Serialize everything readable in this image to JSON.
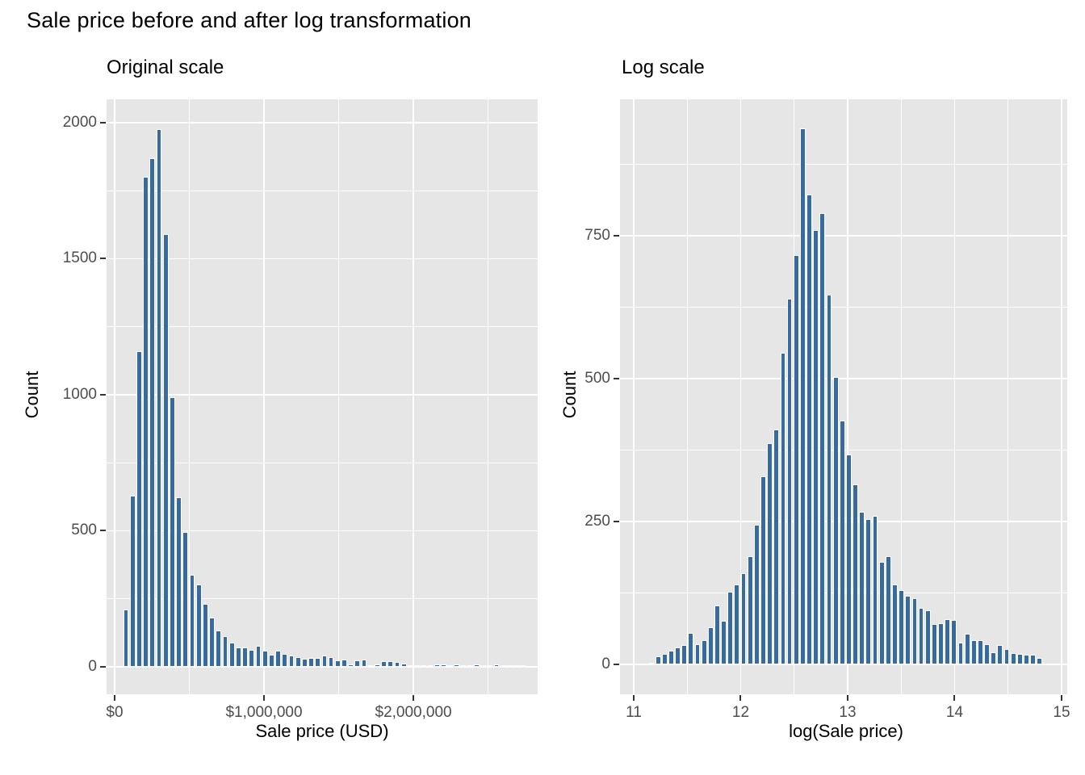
{
  "page": {
    "title": "Sale price before and after log transformation"
  },
  "chart_data": [
    {
      "type": "bar",
      "subtype": "histogram",
      "panel_title": "Original scale",
      "xlabel": "Sale price (USD)",
      "ylabel": "Count",
      "legend": "none",
      "grid": "on",
      "panel_background": "#e6e6e6",
      "bar_color": "#376a9e",
      "x_tick_labels": [
        "$0",
        "$1,000,000",
        "$2,000,000"
      ],
      "x_tick_values": [
        0,
        1000000,
        2000000
      ],
      "x_minor": [
        500000,
        1500000,
        2500000
      ],
      "y_ticks": [
        0,
        500,
        1000,
        1500,
        2000
      ],
      "y_minor": [
        250,
        750,
        1250,
        1750
      ],
      "xlim": [
        -54000,
        2832000
      ],
      "ylim": [
        -101,
        2086
      ],
      "bin_start": 75700,
      "bin_step": 44300,
      "values": [
        210,
        630,
        1160,
        1800,
        1870,
        1975,
        1590,
        990,
        623,
        496,
        339,
        302,
        231,
        181,
        134,
        112,
        89,
        71,
        70,
        63,
        77,
        58,
        45,
        60,
        48,
        40,
        35,
        30,
        33,
        33,
        40,
        35,
        25,
        28,
        10,
        25,
        28,
        3,
        8,
        20,
        20,
        17,
        13,
        6,
        2,
        5,
        5,
        10,
        8,
        3,
        9,
        7,
        4,
        9,
        2,
        4,
        9,
        2,
        1,
        7,
        2
      ]
    },
    {
      "type": "bar",
      "subtype": "histogram",
      "panel_title": "Log scale",
      "xlabel": "log(Sale price)",
      "ylabel": "Count",
      "legend": "none",
      "grid": "on",
      "panel_background": "#e6e6e6",
      "bar_color": "#376a9e",
      "x_tick_labels": [
        "11",
        "12",
        "13",
        "14",
        "15"
      ],
      "x_tick_values": [
        11,
        12,
        13,
        14,
        15
      ],
      "x_minor": [
        11.5,
        12.5,
        13.5,
        14.5
      ],
      "y_ticks": [
        0,
        250,
        500,
        750
      ],
      "y_minor": [
        125,
        375,
        625,
        875
      ],
      "xlim": [
        10.872,
        15.053
      ],
      "ylim": [
        -52,
        989
      ],
      "bin_start": 11.166,
      "bin_step": 0.0615,
      "values": [
        3,
        14,
        18,
        24,
        30,
        34,
        55,
        36,
        42,
        65,
        103,
        76,
        127,
        140,
        160,
        190,
        245,
        330,
        387,
        411,
        545,
        640,
        717,
        938,
        823,
        760,
        790,
        647,
        503,
        427,
        367,
        315,
        267,
        254,
        260,
        179,
        189,
        140,
        130,
        121,
        116,
        99,
        95,
        71,
        73,
        79,
        78,
        38,
        54,
        42,
        42,
        36,
        21,
        34,
        27,
        20,
        18,
        17,
        17,
        11
      ]
    }
  ]
}
